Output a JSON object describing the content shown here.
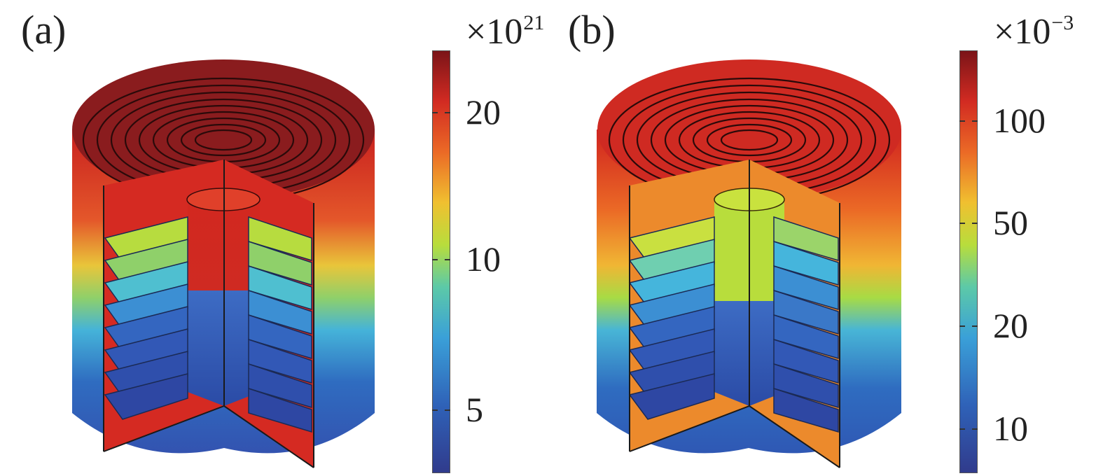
{
  "panels": [
    {
      "label": "(a)",
      "colorbar": {
        "multiplier_base": "×10",
        "multiplier_exp": "21",
        "ticks": [
          {
            "label": "20",
            "value": 20
          },
          {
            "label": "10",
            "value": 10
          },
          {
            "label": "5",
            "value": 5
          }
        ],
        "colormap": "jet-like (blue to dark red)"
      }
    },
    {
      "label": "(b)",
      "colorbar": {
        "multiplier_base": "×10",
        "multiplier_exp": "−3",
        "ticks": [
          {
            "label": "100",
            "value": 100
          },
          {
            "label": "50",
            "value": 50
          },
          {
            "label": "20",
            "value": 20
          },
          {
            "label": "10",
            "value": 10
          }
        ],
        "colormap": "jet-like (blue to dark red)"
      }
    }
  ],
  "colors": {
    "dark_red": "#7b1418",
    "red": "#d22b22",
    "orange": "#eb6a26",
    "yellow_green": "#b8dd3c",
    "cyan": "#3aa0d8",
    "blue": "#2f62b8",
    "dark_blue": "#303b8c"
  }
}
